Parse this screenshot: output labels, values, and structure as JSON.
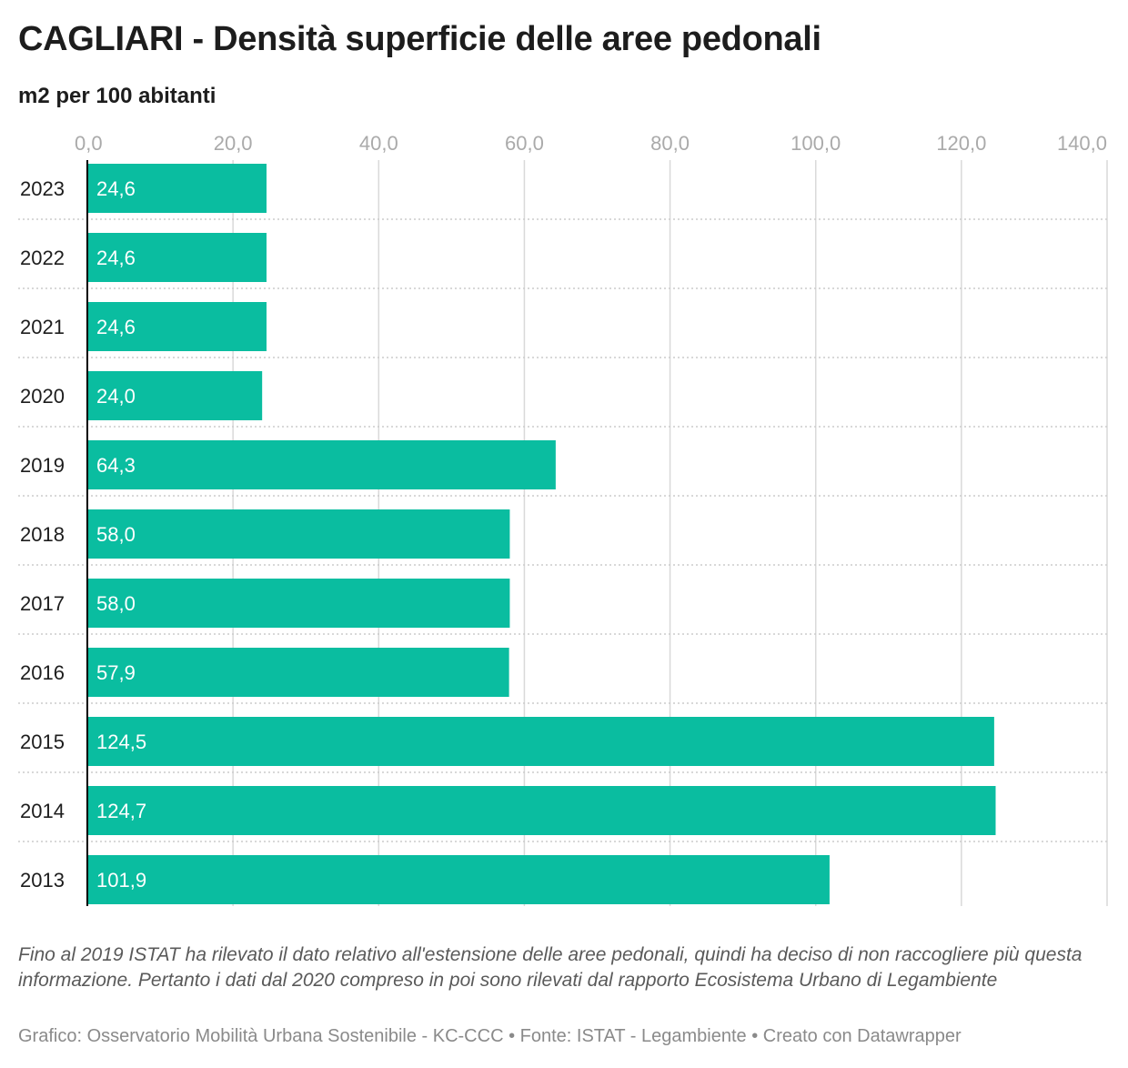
{
  "header": {
    "title": "CAGLIARI - Densità superficie delle aree pedonali",
    "subtitle": "m2 per 100 abitanti"
  },
  "notes": "Fino al 2019 ISTAT ha rilevato il dato relativo all'estensione delle aree pedonali, quindi ha deciso di non raccogliere più questa informazione. Pertanto i dati dal 2020 compreso in poi sono rilevati dal rapporto Ecosistema Urbano di Legambiente",
  "footer": "Grafico: Osservatorio Mobilità Urbana Sostenibile - KC-CCC • Fonte: ISTAT - Legambiente • Creato con Datawrapper",
  "colors": {
    "bar": "#0abda0",
    "grid": "#d9d9d9",
    "axis": "#000000",
    "tick_text": "#aaaaaa"
  },
  "chart_data": {
    "type": "bar",
    "orientation": "horizontal",
    "title": "CAGLIARI - Densità superficie delle aree pedonali",
    "subtitle": "m2 per 100 abitanti",
    "categories": [
      "2023",
      "2022",
      "2021",
      "2020",
      "2019",
      "2018",
      "2017",
      "2016",
      "2015",
      "2014",
      "2013"
    ],
    "values": [
      24.6,
      24.6,
      24.6,
      24.0,
      64.3,
      58.0,
      58.0,
      57.9,
      124.5,
      124.7,
      101.9
    ],
    "value_labels": [
      "24,6",
      "24,6",
      "24,6",
      "24,0",
      "64,3",
      "58,0",
      "58,0",
      "57,9",
      "124,5",
      "124,7",
      "101,9"
    ],
    "xlim": [
      0,
      140
    ],
    "xticks": [
      0,
      20,
      40,
      60,
      80,
      100,
      120,
      140
    ],
    "xtick_labels": [
      "0,0",
      "20,0",
      "40,0",
      "60,0",
      "80,0",
      "100,0",
      "120,0",
      "140,0"
    ],
    "grid": true,
    "axis_position": "top"
  }
}
